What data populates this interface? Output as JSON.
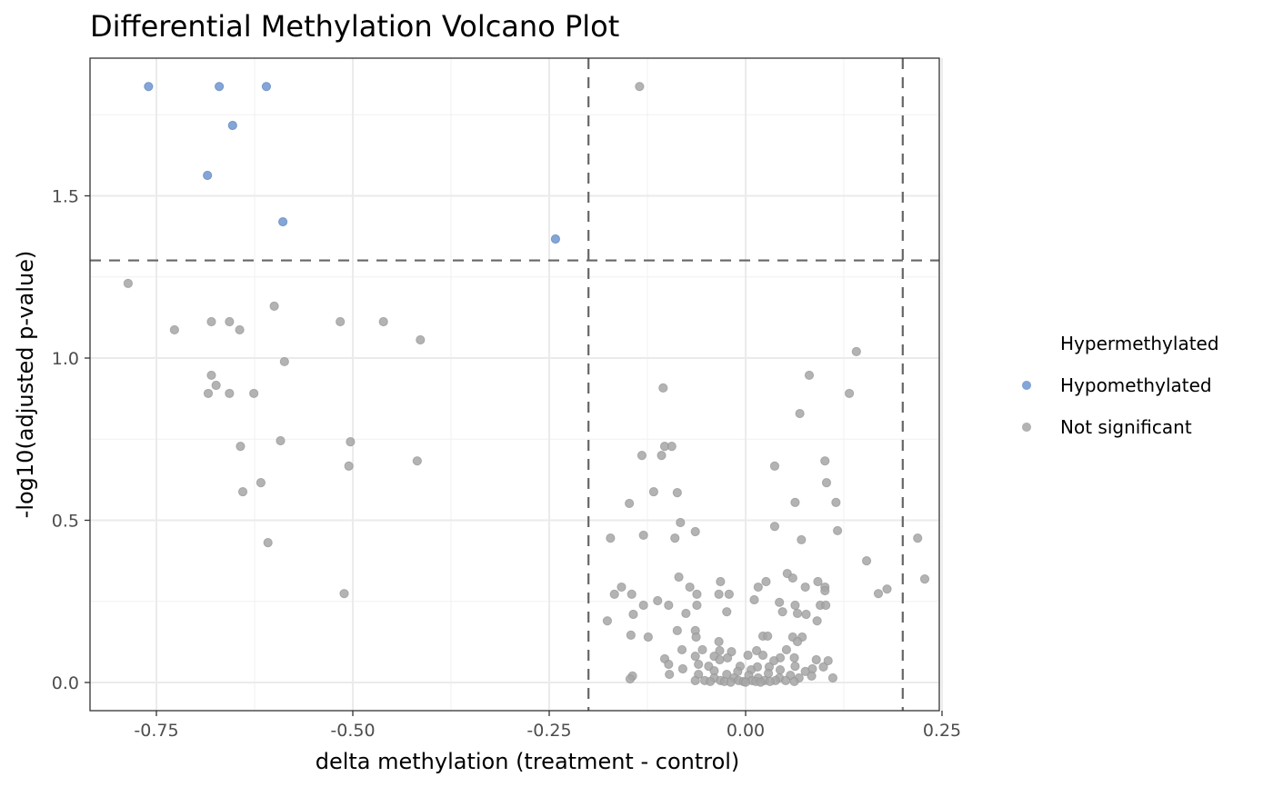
{
  "chart_data": {
    "type": "scatter",
    "title": "Differential Methylation Volcano Plot",
    "xlabel": "delta methylation (treatment - control)",
    "ylabel": "-log10(adjusted p-value)",
    "xlim": [
      -0.84,
      0.245
    ],
    "ylim": [
      -0.087,
      1.93
    ],
    "x_ticks": [
      -0.75,
      -0.5,
      -0.25,
      0.0,
      0.25
    ],
    "x_tick_labels": [
      "-0.75",
      "-0.50",
      "-0.25",
      "0.00",
      "0.25"
    ],
    "y_ticks": [
      0.0,
      0.5,
      1.0,
      1.5
    ],
    "y_tick_labels": [
      "0.0",
      "0.5",
      "1.0",
      "1.5"
    ],
    "grid": true,
    "thresholds": {
      "vertical": [
        -0.2,
        0.2
      ],
      "horizontal": [
        1.301
      ]
    },
    "legend": {
      "placement": "right",
      "entries": [
        {
          "label": "Hypermethylated",
          "color": "",
          "shown_marker": false
        },
        {
          "label": "Hypomethylated",
          "color": "#6f96cf",
          "shown_marker": true
        },
        {
          "label": "Not significant",
          "color": "#a6a6a6",
          "shown_marker": true
        }
      ]
    },
    "series": [
      {
        "name": "Hypomethylated",
        "color": "#6f96cf",
        "points": [
          [
            -0.76,
            1.837
          ],
          [
            -0.67,
            1.837
          ],
          [
            -0.61,
            1.837
          ],
          [
            -0.653,
            1.717
          ],
          [
            -0.685,
            1.563
          ],
          [
            -0.589,
            1.42
          ],
          [
            -0.242,
            1.367
          ]
        ]
      },
      {
        "name": "Not significant",
        "color": "#a6a6a6",
        "points": [
          [
            -0.135,
            1.837
          ],
          [
            -0.786,
            1.23
          ],
          [
            -0.727,
            1.087
          ],
          [
            -0.68,
            1.112
          ],
          [
            -0.657,
            1.112
          ],
          [
            -0.644,
            1.087
          ],
          [
            -0.6,
            1.16
          ],
          [
            -0.516,
            1.112
          ],
          [
            -0.461,
            1.112
          ],
          [
            -0.414,
            1.056
          ],
          [
            -0.587,
            0.989
          ],
          [
            -0.68,
            0.947
          ],
          [
            -0.674,
            0.916
          ],
          [
            -0.684,
            0.891
          ],
          [
            -0.657,
            0.891
          ],
          [
            -0.626,
            0.891
          ],
          [
            -0.643,
            0.728
          ],
          [
            -0.592,
            0.745
          ],
          [
            -0.503,
            0.742
          ],
          [
            -0.505,
            0.667
          ],
          [
            -0.418,
            0.683
          ],
          [
            -0.617,
            0.616
          ],
          [
            -0.64,
            0.588
          ],
          [
            -0.608,
            0.431
          ],
          [
            -0.511,
            0.274
          ],
          [
            0.141,
            1.02
          ],
          [
            0.081,
            0.947
          ],
          [
            0.132,
            0.891
          ],
          [
            -0.105,
            0.908
          ],
          [
            0.069,
            0.829
          ],
          [
            -0.103,
            0.728
          ],
          [
            -0.094,
            0.728
          ],
          [
            -0.132,
            0.7
          ],
          [
            -0.107,
            0.7
          ],
          [
            0.037,
            0.667
          ],
          [
            0.101,
            0.683
          ],
          [
            0.103,
            0.616
          ],
          [
            -0.117,
            0.588
          ],
          [
            -0.087,
            0.585
          ],
          [
            0.063,
            0.555
          ],
          [
            0.115,
            0.555
          ],
          [
            -0.148,
            0.552
          ],
          [
            -0.083,
            0.493
          ],
          [
            -0.064,
            0.465
          ],
          [
            0.037,
            0.481
          ],
          [
            0.117,
            0.468
          ],
          [
            -0.13,
            0.454
          ],
          [
            -0.09,
            0.445
          ],
          [
            0.071,
            0.44
          ],
          [
            -0.172,
            0.445
          ],
          [
            0.219,
            0.445
          ],
          [
            0.154,
            0.375
          ],
          [
            0.228,
            0.319
          ],
          [
            0.18,
            0.288
          ],
          [
            0.169,
            0.274
          ],
          [
            -0.085,
            0.325
          ],
          [
            -0.032,
            0.311
          ],
          [
            0.053,
            0.336
          ],
          [
            0.026,
            0.311
          ],
          [
            0.06,
            0.322
          ],
          [
            0.092,
            0.311
          ],
          [
            -0.158,
            0.294
          ],
          [
            -0.071,
            0.294
          ],
          [
            0.016,
            0.294
          ],
          [
            0.076,
            0.294
          ],
          [
            0.101,
            0.294
          ],
          [
            0.101,
            0.283
          ],
          [
            -0.167,
            0.272
          ],
          [
            -0.145,
            0.272
          ],
          [
            -0.034,
            0.272
          ],
          [
            -0.021,
            0.272
          ],
          [
            -0.062,
            0.272
          ],
          [
            0.011,
            0.255
          ],
          [
            -0.112,
            0.252
          ],
          [
            0.043,
            0.247
          ],
          [
            -0.13,
            0.238
          ],
          [
            -0.098,
            0.238
          ],
          [
            -0.062,
            0.238
          ],
          [
            0.063,
            0.238
          ],
          [
            0.095,
            0.238
          ],
          [
            0.102,
            0.238
          ],
          [
            -0.076,
            0.213
          ],
          [
            -0.143,
            0.21
          ],
          [
            -0.024,
            0.218
          ],
          [
            0.047,
            0.218
          ],
          [
            0.066,
            0.213
          ],
          [
            0.077,
            0.21
          ],
          [
            -0.176,
            0.19
          ],
          [
            0.091,
            0.19
          ],
          [
            -0.064,
            0.16
          ],
          [
            -0.087,
            0.16
          ],
          [
            -0.146,
            0.146
          ],
          [
            -0.124,
            0.14
          ],
          [
            0.022,
            0.143
          ],
          [
            0.028,
            0.143
          ],
          [
            0.06,
            0.14
          ],
          [
            0.072,
            0.14
          ],
          [
            -0.063,
            0.14
          ],
          [
            -0.034,
            0.126
          ],
          [
            0.066,
            0.126
          ],
          [
            -0.081,
            0.101
          ],
          [
            -0.055,
            0.101
          ],
          [
            -0.033,
            0.098
          ],
          [
            0.014,
            0.098
          ],
          [
            0.052,
            0.101
          ],
          [
            -0.018,
            0.095
          ],
          [
            0.003,
            0.084
          ],
          [
            0.022,
            0.084
          ],
          [
            -0.064,
            0.081
          ],
          [
            -0.04,
            0.081
          ],
          [
            -0.023,
            0.076
          ],
          [
            0.044,
            0.076
          ],
          [
            0.062,
            0.076
          ],
          [
            -0.103,
            0.073
          ],
          [
            -0.033,
            0.07
          ],
          [
            0.036,
            0.067
          ],
          [
            0.09,
            0.07
          ],
          [
            0.105,
            0.067
          ],
          [
            -0.098,
            0.056
          ],
          [
            -0.06,
            0.056
          ],
          [
            -0.047,
            0.05
          ],
          [
            -0.007,
            0.05
          ],
          [
            0.015,
            0.048
          ],
          [
            0.03,
            0.048
          ],
          [
            0.063,
            0.05
          ],
          [
            0.099,
            0.048
          ],
          [
            0.085,
            0.042
          ],
          [
            -0.08,
            0.042
          ],
          [
            0.007,
            0.039
          ],
          [
            0.044,
            0.039
          ],
          [
            -0.04,
            0.036
          ],
          [
            -0.01,
            0.034
          ],
          [
            0.076,
            0.034
          ],
          [
            0.029,
            0.028
          ],
          [
            -0.097,
            0.025
          ],
          [
            -0.06,
            0.025
          ],
          [
            -0.024,
            0.025
          ],
          [
            0.004,
            0.022
          ],
          [
            0.057,
            0.022
          ],
          [
            0.084,
            0.02
          ],
          [
            -0.144,
            0.02
          ],
          [
            -0.147,
            0.011
          ],
          [
            0.111,
            0.014
          ],
          [
            -0.04,
            0.014
          ],
          [
            -0.015,
            0.014
          ],
          [
            0.016,
            0.014
          ],
          [
            0.043,
            0.014
          ],
          [
            0.068,
            0.014
          ],
          [
            -0.064,
            0.006
          ],
          [
            -0.052,
            0.006
          ],
          [
            -0.032,
            0.006
          ],
          [
            -0.009,
            0.006
          ],
          [
            0.008,
            0.006
          ],
          [
            0.024,
            0.006
          ],
          [
            0.038,
            0.006
          ],
          [
            0.051,
            0.006
          ],
          [
            -0.027,
            0.003
          ],
          [
            -0.003,
            0.003
          ],
          [
            0.013,
            0.003
          ],
          [
            0.031,
            0.003
          ],
          [
            -0.045,
            0.003
          ],
          [
            0.062,
            0.003
          ],
          [
            -0.019,
            0.001
          ],
          [
            0.0,
            0.001
          ],
          [
            0.019,
            0.001
          ]
        ]
      }
    ]
  }
}
